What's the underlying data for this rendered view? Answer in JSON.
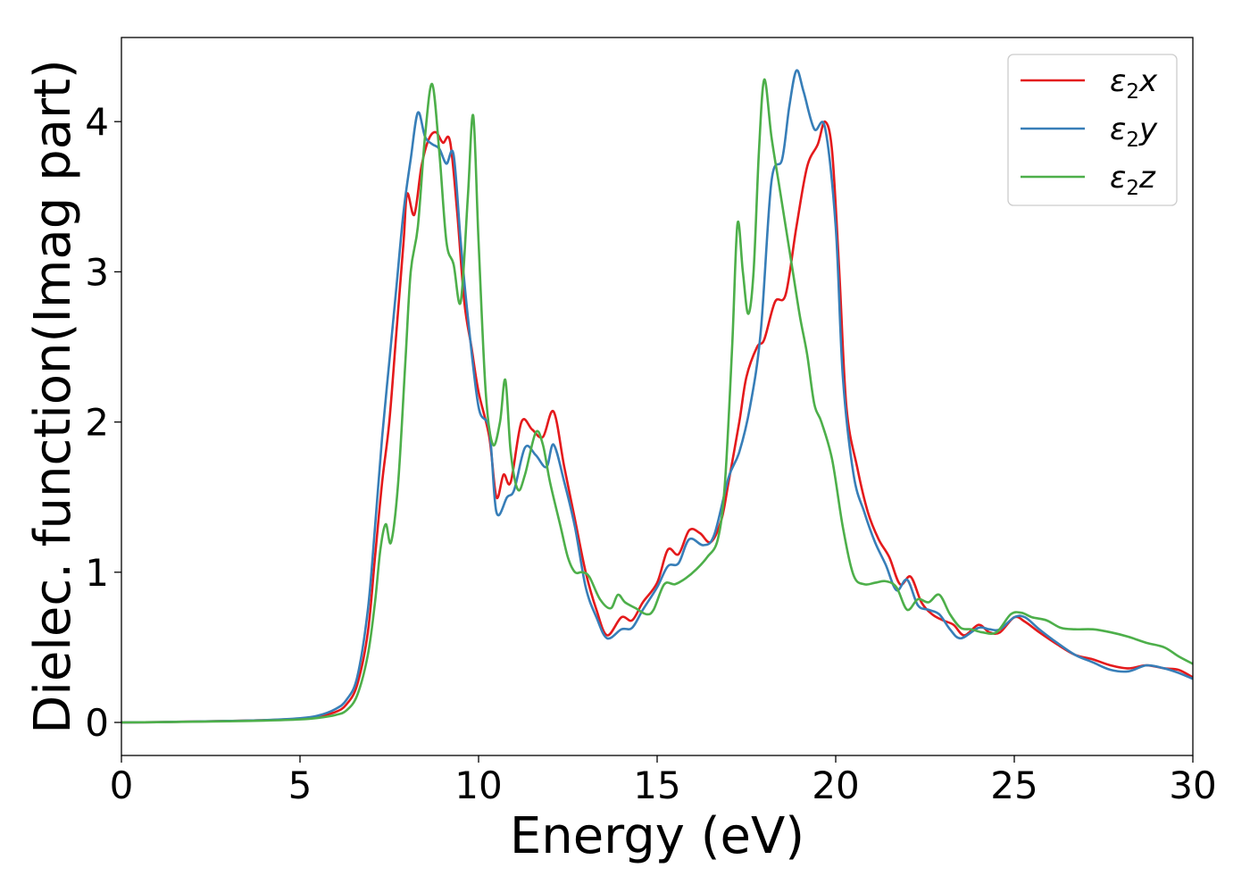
{
  "chart_data": {
    "type": "line",
    "title": "",
    "xlabel": "Energy (eV)",
    "ylabel": "Dielec. function(Imag part)",
    "xlim": [
      0,
      30
    ],
    "ylim": [
      -0.22,
      4.56
    ],
    "xticks": [
      0,
      5,
      10,
      15,
      20,
      25,
      30
    ],
    "yticks": [
      0,
      1,
      2,
      3,
      4
    ],
    "grid": false,
    "legend_position": "top-right",
    "series": [
      {
        "name": "ε₂x",
        "legend": {
          "base": "ε",
          "sub": "2",
          "suffix": "x"
        },
        "color": "#e41a1c",
        "points": [
          [
            0,
            0
          ],
          [
            1,
            0.002
          ],
          [
            2,
            0.006
          ],
          [
            3,
            0.01
          ],
          [
            4,
            0.015
          ],
          [
            5,
            0.025
          ],
          [
            5.5,
            0.04
          ],
          [
            6,
            0.07
          ],
          [
            6.3,
            0.12
          ],
          [
            6.6,
            0.25
          ],
          [
            6.9,
            0.6
          ],
          [
            7.1,
            1.1
          ],
          [
            7.3,
            1.6
          ],
          [
            7.5,
            2.0
          ],
          [
            7.7,
            2.6
          ],
          [
            7.9,
            3.2
          ],
          [
            8.0,
            3.52
          ],
          [
            8.2,
            3.38
          ],
          [
            8.4,
            3.7
          ],
          [
            8.6,
            3.88
          ],
          [
            8.8,
            3.93
          ],
          [
            9.0,
            3.86
          ],
          [
            9.2,
            3.87
          ],
          [
            9.4,
            3.4
          ],
          [
            9.6,
            2.8
          ],
          [
            9.8,
            2.5
          ],
          [
            10.0,
            2.2
          ],
          [
            10.3,
            1.9
          ],
          [
            10.5,
            1.5
          ],
          [
            10.7,
            1.65
          ],
          [
            10.9,
            1.6
          ],
          [
            11.2,
            2.0
          ],
          [
            11.5,
            1.95
          ],
          [
            11.8,
            1.9
          ],
          [
            12.1,
            2.07
          ],
          [
            12.4,
            1.7
          ],
          [
            12.7,
            1.35
          ],
          [
            13.0,
            1.0
          ],
          [
            13.3,
            0.75
          ],
          [
            13.6,
            0.58
          ],
          [
            14.0,
            0.7
          ],
          [
            14.3,
            0.68
          ],
          [
            14.6,
            0.8
          ],
          [
            15.0,
            0.93
          ],
          [
            15.3,
            1.15
          ],
          [
            15.6,
            1.12
          ],
          [
            15.9,
            1.28
          ],
          [
            16.2,
            1.26
          ],
          [
            16.5,
            1.2
          ],
          [
            16.8,
            1.35
          ],
          [
            17.0,
            1.6
          ],
          [
            17.3,
            2.0
          ],
          [
            17.5,
            2.3
          ],
          [
            17.8,
            2.5
          ],
          [
            18.0,
            2.55
          ],
          [
            18.3,
            2.8
          ],
          [
            18.6,
            2.85
          ],
          [
            18.9,
            3.3
          ],
          [
            19.2,
            3.7
          ],
          [
            19.5,
            3.85
          ],
          [
            19.7,
            4.0
          ],
          [
            19.9,
            3.8
          ],
          [
            20.1,
            3.0
          ],
          [
            20.3,
            2.1
          ],
          [
            20.6,
            1.7
          ],
          [
            20.9,
            1.4
          ],
          [
            21.2,
            1.22
          ],
          [
            21.5,
            1.1
          ],
          [
            21.8,
            0.92
          ],
          [
            22.1,
            0.97
          ],
          [
            22.4,
            0.8
          ],
          [
            22.7,
            0.72
          ],
          [
            23.0,
            0.68
          ],
          [
            23.3,
            0.65
          ],
          [
            23.6,
            0.58
          ],
          [
            24.0,
            0.65
          ],
          [
            24.3,
            0.6
          ],
          [
            24.6,
            0.6
          ],
          [
            25.0,
            0.7
          ],
          [
            25.3,
            0.67
          ],
          [
            25.7,
            0.6
          ],
          [
            26.2,
            0.52
          ],
          [
            26.7,
            0.45
          ],
          [
            27.2,
            0.42
          ],
          [
            27.7,
            0.38
          ],
          [
            28.2,
            0.36
          ],
          [
            28.7,
            0.38
          ],
          [
            29.2,
            0.36
          ],
          [
            29.6,
            0.35
          ],
          [
            30.0,
            0.3
          ]
        ]
      },
      {
        "name": "ε₂y",
        "legend": {
          "base": "ε",
          "sub": "2",
          "suffix": "y"
        },
        "color": "#377eb8",
        "points": [
          [
            0,
            0
          ],
          [
            1,
            0.002
          ],
          [
            2,
            0.006
          ],
          [
            3,
            0.01
          ],
          [
            4,
            0.015
          ],
          [
            5,
            0.028
          ],
          [
            5.5,
            0.045
          ],
          [
            6,
            0.09
          ],
          [
            6.3,
            0.15
          ],
          [
            6.6,
            0.3
          ],
          [
            6.9,
            0.75
          ],
          [
            7.1,
            1.3
          ],
          [
            7.3,
            1.9
          ],
          [
            7.5,
            2.4
          ],
          [
            7.7,
            2.9
          ],
          [
            7.9,
            3.4
          ],
          [
            8.1,
            3.75
          ],
          [
            8.3,
            4.06
          ],
          [
            8.5,
            3.9
          ],
          [
            8.7,
            3.85
          ],
          [
            8.9,
            3.82
          ],
          [
            9.1,
            3.72
          ],
          [
            9.3,
            3.78
          ],
          [
            9.5,
            3.2
          ],
          [
            9.7,
            2.7
          ],
          [
            10.0,
            2.1
          ],
          [
            10.3,
            1.95
          ],
          [
            10.5,
            1.4
          ],
          [
            10.8,
            1.5
          ],
          [
            11.0,
            1.55
          ],
          [
            11.3,
            1.83
          ],
          [
            11.6,
            1.78
          ],
          [
            11.9,
            1.7
          ],
          [
            12.1,
            1.85
          ],
          [
            12.4,
            1.6
          ],
          [
            12.7,
            1.3
          ],
          [
            13.0,
            0.9
          ],
          [
            13.3,
            0.7
          ],
          [
            13.6,
            0.56
          ],
          [
            14.0,
            0.62
          ],
          [
            14.3,
            0.63
          ],
          [
            14.6,
            0.75
          ],
          [
            15.0,
            0.9
          ],
          [
            15.3,
            1.04
          ],
          [
            15.6,
            1.06
          ],
          [
            15.9,
            1.22
          ],
          [
            16.3,
            1.18
          ],
          [
            16.6,
            1.25
          ],
          [
            17.0,
            1.63
          ],
          [
            17.3,
            1.8
          ],
          [
            17.6,
            2.1
          ],
          [
            17.9,
            2.6
          ],
          [
            18.2,
            3.6
          ],
          [
            18.5,
            3.75
          ],
          [
            18.7,
            4.1
          ],
          [
            18.9,
            4.34
          ],
          [
            19.1,
            4.2
          ],
          [
            19.4,
            3.95
          ],
          [
            19.7,
            3.96
          ],
          [
            20.0,
            3.3
          ],
          [
            20.2,
            2.3
          ],
          [
            20.5,
            1.65
          ],
          [
            20.8,
            1.4
          ],
          [
            21.1,
            1.2
          ],
          [
            21.4,
            1.05
          ],
          [
            21.7,
            0.88
          ],
          [
            22.0,
            0.95
          ],
          [
            22.3,
            0.78
          ],
          [
            22.6,
            0.75
          ],
          [
            22.9,
            0.72
          ],
          [
            23.2,
            0.62
          ],
          [
            23.5,
            0.56
          ],
          [
            24.0,
            0.63
          ],
          [
            24.3,
            0.62
          ],
          [
            24.6,
            0.62
          ],
          [
            25.0,
            0.7
          ],
          [
            25.3,
            0.7
          ],
          [
            25.7,
            0.62
          ],
          [
            26.2,
            0.53
          ],
          [
            26.7,
            0.45
          ],
          [
            27.2,
            0.4
          ],
          [
            27.7,
            0.35
          ],
          [
            28.2,
            0.34
          ],
          [
            28.7,
            0.38
          ],
          [
            29.2,
            0.36
          ],
          [
            29.6,
            0.33
          ],
          [
            30.0,
            0.29
          ]
        ]
      },
      {
        "name": "ε₂z",
        "legend": {
          "base": "ε",
          "sub": "2",
          "suffix": "z"
        },
        "color": "#4daf4a",
        "points": [
          [
            0,
            0
          ],
          [
            1,
            0.002
          ],
          [
            2,
            0.005
          ],
          [
            3,
            0.008
          ],
          [
            4,
            0.012
          ],
          [
            5,
            0.02
          ],
          [
            5.5,
            0.03
          ],
          [
            6,
            0.05
          ],
          [
            6.3,
            0.08
          ],
          [
            6.6,
            0.18
          ],
          [
            6.9,
            0.45
          ],
          [
            7.1,
            0.8
          ],
          [
            7.25,
            1.15
          ],
          [
            7.4,
            1.32
          ],
          [
            7.55,
            1.2
          ],
          [
            7.75,
            1.6
          ],
          [
            7.95,
            2.4
          ],
          [
            8.1,
            3.0
          ],
          [
            8.3,
            3.3
          ],
          [
            8.5,
            3.9
          ],
          [
            8.7,
            4.25
          ],
          [
            8.9,
            3.8
          ],
          [
            9.1,
            3.2
          ],
          [
            9.3,
            3.05
          ],
          [
            9.5,
            2.8
          ],
          [
            9.7,
            3.5
          ],
          [
            9.85,
            4.04
          ],
          [
            10.0,
            3.2
          ],
          [
            10.2,
            2.2
          ],
          [
            10.4,
            1.85
          ],
          [
            10.6,
            2.0
          ],
          [
            10.75,
            2.28
          ],
          [
            10.9,
            1.8
          ],
          [
            11.1,
            1.55
          ],
          [
            11.3,
            1.65
          ],
          [
            11.6,
            1.93
          ],
          [
            11.8,
            1.85
          ],
          [
            12.0,
            1.6
          ],
          [
            12.3,
            1.3
          ],
          [
            12.5,
            1.1
          ],
          [
            12.7,
            1.0
          ],
          [
            12.9,
            1.0
          ],
          [
            13.1,
            0.97
          ],
          [
            13.4,
            0.82
          ],
          [
            13.7,
            0.76
          ],
          [
            13.9,
            0.85
          ],
          [
            14.1,
            0.8
          ],
          [
            14.4,
            0.76
          ],
          [
            14.7,
            0.72
          ],
          [
            14.9,
            0.75
          ],
          [
            15.2,
            0.92
          ],
          [
            15.5,
            0.92
          ],
          [
            15.8,
            0.96
          ],
          [
            16.1,
            1.02
          ],
          [
            16.4,
            1.1
          ],
          [
            16.7,
            1.22
          ],
          [
            16.9,
            1.6
          ],
          [
            17.1,
            2.5
          ],
          [
            17.25,
            3.32
          ],
          [
            17.4,
            3.0
          ],
          [
            17.55,
            2.72
          ],
          [
            17.7,
            3.0
          ],
          [
            17.85,
            3.8
          ],
          [
            18.0,
            4.28
          ],
          [
            18.2,
            3.9
          ],
          [
            18.4,
            3.6
          ],
          [
            18.6,
            3.3
          ],
          [
            18.8,
            3.0
          ],
          [
            19.0,
            2.7
          ],
          [
            19.2,
            2.45
          ],
          [
            19.4,
            2.12
          ],
          [
            19.6,
            2.0
          ],
          [
            19.9,
            1.75
          ],
          [
            20.2,
            1.3
          ],
          [
            20.5,
            0.98
          ],
          [
            20.8,
            0.92
          ],
          [
            21.1,
            0.93
          ],
          [
            21.4,
            0.94
          ],
          [
            21.7,
            0.9
          ],
          [
            22.0,
            0.75
          ],
          [
            22.3,
            0.82
          ],
          [
            22.6,
            0.8
          ],
          [
            22.9,
            0.85
          ],
          [
            23.2,
            0.72
          ],
          [
            23.5,
            0.63
          ],
          [
            23.8,
            0.62
          ],
          [
            24.1,
            0.6
          ],
          [
            24.5,
            0.6
          ],
          [
            24.9,
            0.72
          ],
          [
            25.2,
            0.73
          ],
          [
            25.5,
            0.7
          ],
          [
            25.9,
            0.68
          ],
          [
            26.3,
            0.63
          ],
          [
            26.7,
            0.62
          ],
          [
            27.2,
            0.62
          ],
          [
            27.7,
            0.6
          ],
          [
            28.2,
            0.57
          ],
          [
            28.7,
            0.53
          ],
          [
            29.2,
            0.5
          ],
          [
            29.6,
            0.44
          ],
          [
            30.0,
            0.39
          ]
        ]
      }
    ]
  }
}
